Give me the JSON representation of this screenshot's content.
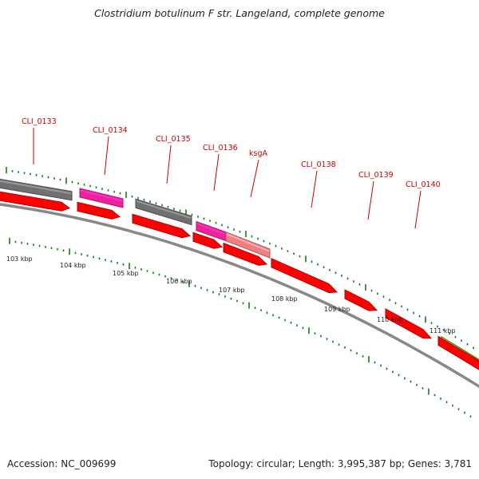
{
  "title": "Clostridium botulinum F str. Langeland, complete genome",
  "footer": {
    "accession": "Accession: NC_009699",
    "summary": "Topology: circular; Length: 3,995,387 bp; Genes: 3,781"
  },
  "colors": {
    "cds": "#ff0000",
    "gene_dark": "#707070",
    "gene_magenta": "#ee2299",
    "gene_pink": "#f08080",
    "gene_olive": "#77aa22",
    "backbone": "#888888",
    "ticks": "#1a7a1a",
    "labels": "#cc0000"
  },
  "gene_labels": [
    "CLI_0133",
    "CLI_0134",
    "CLI_0135",
    "CLI_0136",
    "ksgA",
    "CLI_0138",
    "CLI_0139",
    "CLI_0140"
  ],
  "kbp_labels": [
    "103 kbp",
    "104 kbp",
    "105 kbp",
    "106 kbp",
    "107 kbp",
    "108 kbp",
    "109 kbp",
    "110 kbp",
    "111 kbp"
  ]
}
